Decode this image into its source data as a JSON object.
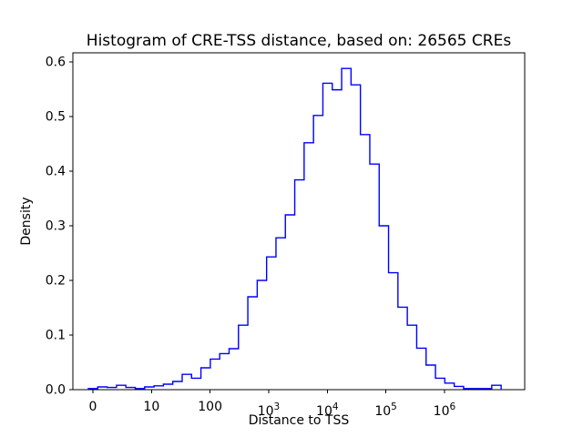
{
  "figure": {
    "background": "#ffffff"
  },
  "chart_data": {
    "type": "step-histogram",
    "title": "Histogram of CRE-TSS distance, based on: 26565 CREs",
    "xlabel": "Distance to TSS",
    "ylabel": "Density",
    "x_scale": "symlog (decade units u; u=0 at value 0, u=k at 10^k)",
    "line_color": "#0000ff",
    "axis_color": "#000000",
    "grid": "off",
    "legend": "none",
    "x_range_u": [
      -0.342,
      7.369
    ],
    "y_range": [
      0,
      0.6167
    ],
    "x_ticks": [
      {
        "u": 0,
        "label": "0"
      },
      {
        "u": 1,
        "label": "10"
      },
      {
        "u": 2,
        "label": "100"
      },
      {
        "u": 3,
        "label": "10^3"
      },
      {
        "u": 4,
        "label": "10^4"
      },
      {
        "u": 5,
        "label": "10^5"
      },
      {
        "u": 6,
        "label": "10^6"
      }
    ],
    "y_ticks": [
      {
        "v": 0.0,
        "label": "0.0"
      },
      {
        "v": 0.1,
        "label": "0.1"
      },
      {
        "v": 0.2,
        "label": "0.2"
      },
      {
        "v": 0.3,
        "label": "0.3"
      },
      {
        "v": 0.4,
        "label": "0.4"
      },
      {
        "v": 0.5,
        "label": "0.5"
      },
      {
        "v": 0.6,
        "label": "0.6"
      }
    ],
    "bins": {
      "start_u": -0.0777,
      "width_u": 0.1601,
      "densities": [
        0.002,
        0.005,
        0.004,
        0.008,
        0.004,
        0.002,
        0.005,
        0.007,
        0.01,
        0.015,
        0.028,
        0.021,
        0.04,
        0.056,
        0.066,
        0.075,
        0.118,
        0.17,
        0.2,
        0.243,
        0.278,
        0.32,
        0.384,
        0.452,
        0.502,
        0.561,
        0.549,
        0.588,
        0.558,
        0.467,
        0.413,
        0.3,
        0.214,
        0.151,
        0.118,
        0.076,
        0.045,
        0.021,
        0.012,
        0.006,
        0.002,
        0.002,
        0.002,
        0.008
      ]
    }
  }
}
